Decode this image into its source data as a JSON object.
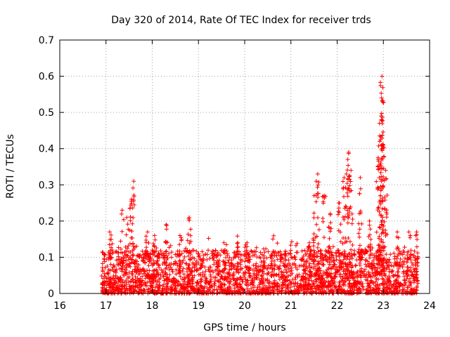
{
  "chart_data": {
    "type": "scatter",
    "title": "Day 320 of 2014, Rate Of TEC Index for receiver trds",
    "xlabel": "GPS time / hours",
    "ylabel": "ROTI / TECUs",
    "xlim": [
      16,
      24
    ],
    "ylim": [
      0,
      0.7
    ],
    "xticks": [
      16,
      17,
      18,
      19,
      20,
      21,
      22,
      23,
      24
    ],
    "yticks": [
      0,
      0.1,
      0.2,
      0.3,
      0.4,
      0.5,
      0.6,
      0.7
    ],
    "x_tick_labels": [
      "16",
      "17",
      "18",
      "19",
      "20",
      "21",
      "22",
      "23",
      "24"
    ],
    "y_tick_labels": [
      "0",
      "0.1",
      "0.2",
      "0.3",
      "0.4",
      "0.5",
      "0.6",
      "0.7"
    ],
    "grid": true,
    "marker": "+",
    "marker_color": "#ff0000",
    "x_range_observed": [
      16.9,
      23.75
    ],
    "band": {
      "note": "dense band of points between 0 and ~0.12 spanning the observed time range",
      "y_min": 0.0,
      "y_max_typical": 0.12,
      "count": 2600
    },
    "peaks": [
      {
        "x": 17.08,
        "y": 0.17
      },
      {
        "x": 17.35,
        "y": 0.23
      },
      {
        "x": 17.45,
        "y": 0.21
      },
      {
        "x": 17.55,
        "y": 0.26
      },
      {
        "x": 17.6,
        "y": 0.31
      },
      {
        "x": 17.9,
        "y": 0.17
      },
      {
        "x": 18.05,
        "y": 0.16
      },
      {
        "x": 18.3,
        "y": 0.19
      },
      {
        "x": 18.6,
        "y": 0.16
      },
      {
        "x": 18.8,
        "y": 0.21
      },
      {
        "x": 19.55,
        "y": 0.14
      },
      {
        "x": 19.85,
        "y": 0.14
      },
      {
        "x": 20.05,
        "y": 0.14
      },
      {
        "x": 21.4,
        "y": 0.14
      },
      {
        "x": 21.5,
        "y": 0.27
      },
      {
        "x": 21.58,
        "y": 0.33
      },
      {
        "x": 21.72,
        "y": 0.27
      },
      {
        "x": 21.85,
        "y": 0.22
      },
      {
        "x": 22.05,
        "y": 0.25
      },
      {
        "x": 22.15,
        "y": 0.32
      },
      {
        "x": 22.2,
        "y": 0.33
      },
      {
        "x": 22.25,
        "y": 0.39
      },
      {
        "x": 22.3,
        "y": 0.34
      },
      {
        "x": 22.5,
        "y": 0.32
      },
      {
        "x": 22.7,
        "y": 0.2
      },
      {
        "x": 22.88,
        "y": 0.35
      },
      {
        "x": 22.92,
        "y": 0.42
      },
      {
        "x": 22.95,
        "y": 0.49
      },
      {
        "x": 22.96,
        "y": 0.54
      },
      {
        "x": 22.97,
        "y": 0.6
      },
      {
        "x": 23.0,
        "y": 0.41
      },
      {
        "x": 23.05,
        "y": 0.34
      },
      {
        "x": 23.3,
        "y": 0.17
      },
      {
        "x": 23.55,
        "y": 0.17
      },
      {
        "x": 23.72,
        "y": 0.17
      }
    ]
  }
}
